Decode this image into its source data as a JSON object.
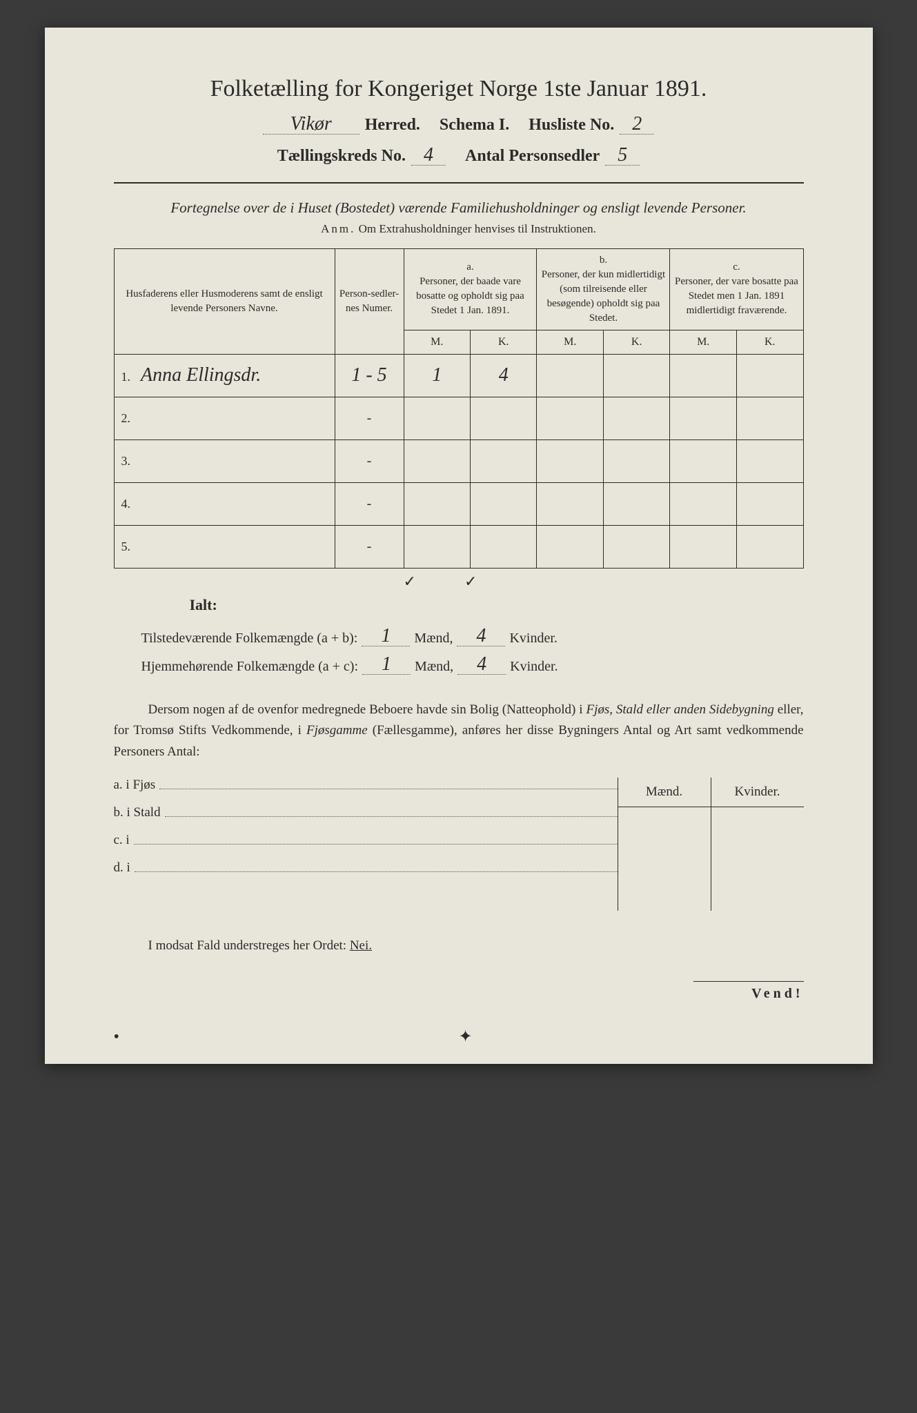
{
  "title": "Folketælling for Kongeriget Norge 1ste Januar 1891.",
  "header": {
    "herred_value": "Vikør",
    "herred_label": "Herred.",
    "schema_label": "Schema I.",
    "husliste_label": "Husliste No.",
    "husliste_value": "2",
    "kreds_label": "Tællingskreds No.",
    "kreds_value": "4",
    "antal_label": "Antal Personsedler",
    "antal_value": "5"
  },
  "subtitle": "Fortegnelse over de i Huset (Bostedet) værende Familiehusholdninger og ensligt levende Personer.",
  "anm_prefix": "Anm.",
  "anm_text": "Om Extrahusholdninger henvises til Instruktionen.",
  "table": {
    "col_name": "Husfaderens eller Husmoderens samt de ensligt levende Personers Navne.",
    "col_num": "Person-sedler-nes Numer.",
    "col_a_head": "a.",
    "col_a_text": "Personer, der baade vare bosatte og opholdt sig paa Stedet 1 Jan. 1891.",
    "col_b_head": "b.",
    "col_b_text": "Personer, der kun midlertidigt (som tilreisende eller besøgende) opholdt sig paa Stedet.",
    "col_c_head": "c.",
    "col_c_text": "Personer, der vare bosatte paa Stedet men 1 Jan. 1891 midlertidigt fraværende.",
    "m_label": "M.",
    "k_label": "K.",
    "rows": [
      {
        "n": "1.",
        "name": "Anna Ellingsdr.",
        "num": "1 - 5",
        "am": "1",
        "ak": "4",
        "bm": "",
        "bk": "",
        "cm": "",
        "ck": ""
      },
      {
        "n": "2.",
        "name": "",
        "num": "-",
        "am": "",
        "ak": "",
        "bm": "",
        "bk": "",
        "cm": "",
        "ck": ""
      },
      {
        "n": "3.",
        "name": "",
        "num": "-",
        "am": "",
        "ak": "",
        "bm": "",
        "bk": "",
        "cm": "",
        "ck": ""
      },
      {
        "n": "4.",
        "name": "",
        "num": "-",
        "am": "",
        "ak": "",
        "bm": "",
        "bk": "",
        "cm": "",
        "ck": ""
      },
      {
        "n": "5.",
        "name": "",
        "num": "-",
        "am": "",
        "ak": "",
        "bm": "",
        "bk": "",
        "cm": "",
        "ck": ""
      }
    ]
  },
  "checks": {
    "c1": "✓",
    "c2": "✓"
  },
  "ialt_label": "Ialt:",
  "summary": {
    "line1_label": "Tilstedeværende Folkemængde (a + b):",
    "line1_m": "1",
    "line1_k": "4",
    "line2_label": "Hjemmehørende Folkemængde (a + c):",
    "line2_m": "1",
    "line2_k": "4",
    "maend": "Mænd,",
    "kvinder": "Kvinder."
  },
  "para_text": "Dersom nogen af de ovenfor medregnede Beboere havde sin Bolig (Natteophold) i Fjøs, Stald eller anden Sidebygning eller, for Tromsø Stifts Vedkommende, i Fjøsgamme (Fællesgamme), anføres her disse Bygningers Antal og Art samt vedkommende Personers Antal:",
  "bldg": {
    "a": "a.  i      Fjøs",
    "b": "b.  i      Stald",
    "c": "c.  i",
    "d": "d.  i"
  },
  "mk": {
    "m": "Mænd.",
    "k": "Kvinder."
  },
  "modsat": "I modsat Fald understreges her Ordet:",
  "nei": "Nei.",
  "vend": "Vend!"
}
